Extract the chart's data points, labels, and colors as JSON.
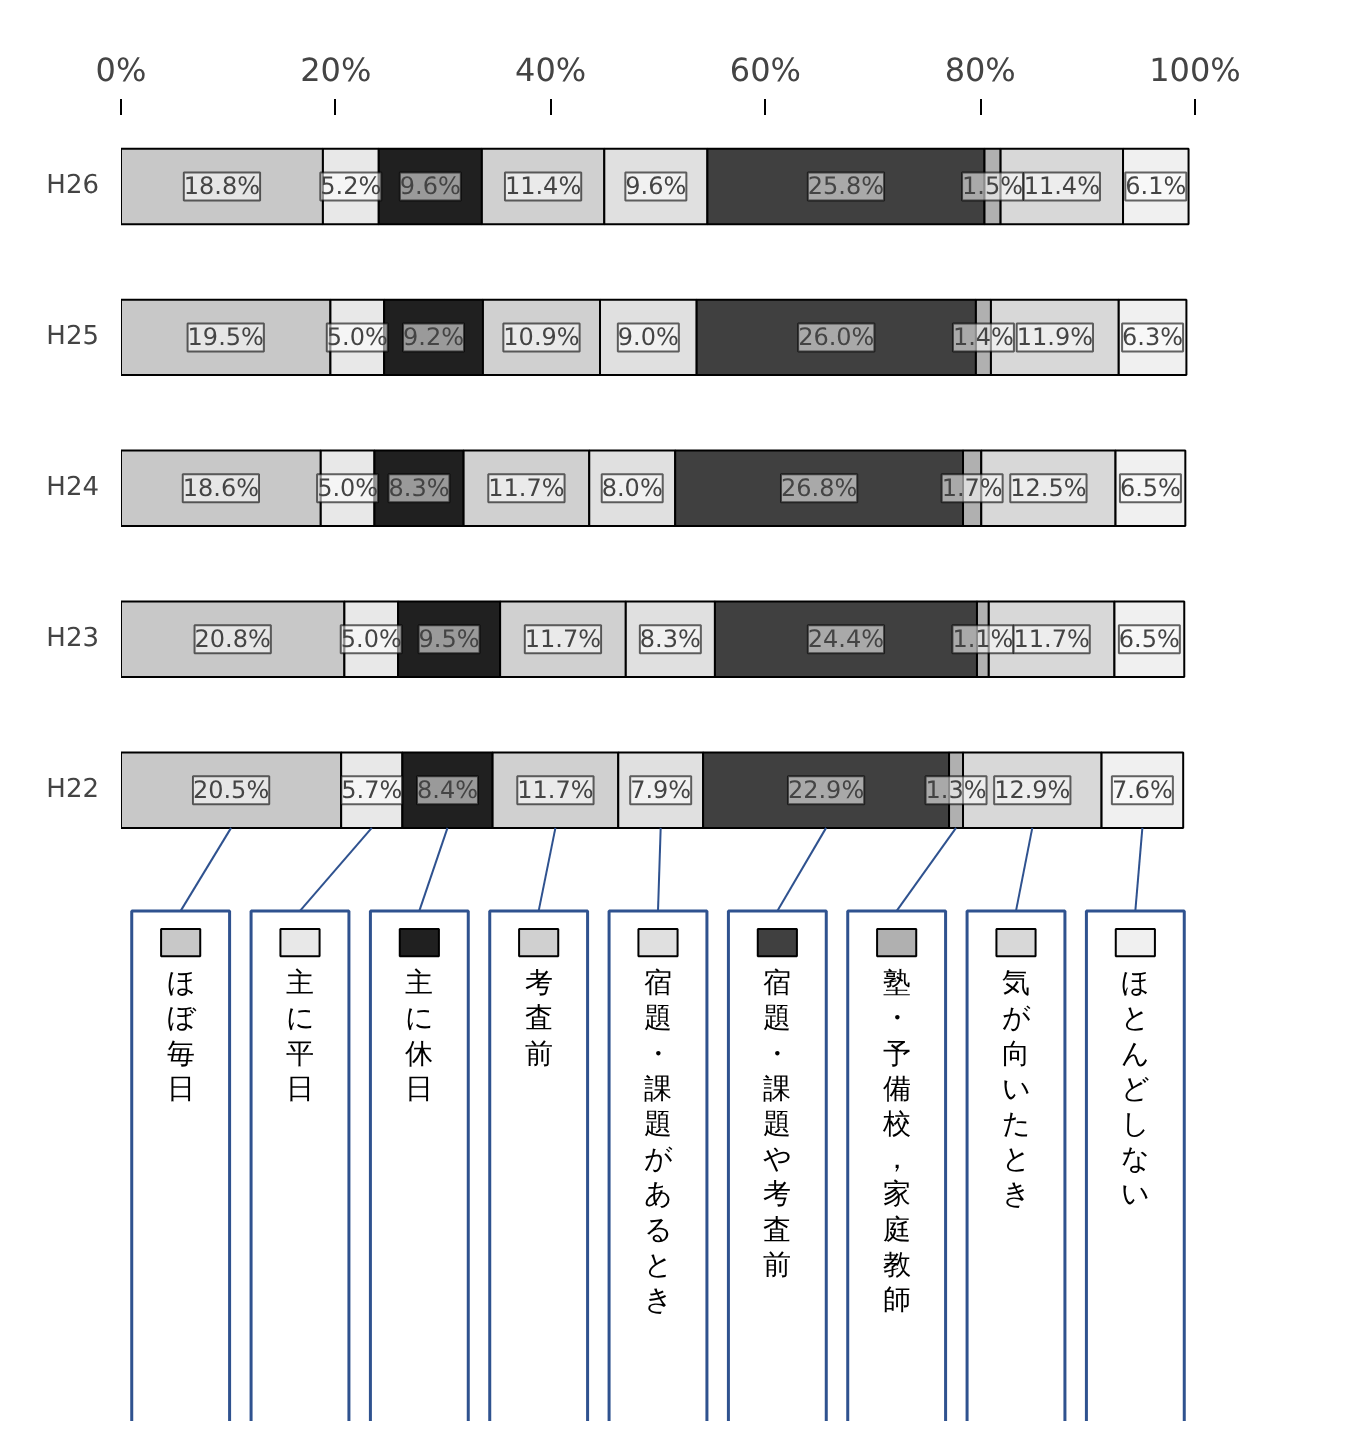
{
  "chart_data": {
    "type": "bar",
    "orientation": "horizontal",
    "stacked": true,
    "categories": [
      "H26",
      "H25",
      "H24",
      "H23",
      "H22"
    ],
    "xlim": [
      0,
      100
    ],
    "xticks": [
      {
        "value": 0,
        "label": "0%"
      },
      {
        "value": 20,
        "label": "20%"
      },
      {
        "value": 40,
        "label": "40%"
      },
      {
        "value": 60,
        "label": "60%"
      },
      {
        "value": 80,
        "label": "80%"
      },
      {
        "value": 100,
        "label": "100%"
      }
    ],
    "grid": false,
    "legend": "bottom",
    "series": [
      {
        "name": "ほぼ毎日",
        "color": "#c8c8c8",
        "values": [
          18.8,
          19.5,
          18.6,
          20.8,
          20.5
        ],
        "value_labels": [
          "18.8%",
          "19.5%",
          "18.6%",
          "20.8%",
          "20.5%"
        ]
      },
      {
        "name": "主に平日",
        "color": "#e8e8e8",
        "values": [
          5.2,
          5.0,
          5.0,
          5.0,
          5.7
        ],
        "value_labels": [
          "5.2%",
          "5.0%",
          "5.0%",
          "5.0%",
          "5.7%"
        ]
      },
      {
        "name": "主に休日",
        "color": "#202020",
        "values": [
          9.6,
          9.2,
          8.3,
          9.5,
          8.4
        ],
        "value_labels": [
          "9.6%",
          "9.2%",
          "8.3%",
          "9.5%",
          "8.4%"
        ]
      },
      {
        "name": "考査前",
        "color": "#d0d0d0",
        "values": [
          11.4,
          10.9,
          11.7,
          11.7,
          11.7
        ],
        "value_labels": [
          "11.4%",
          "10.9%",
          "11.7%",
          "11.7%",
          "11.7%"
        ]
      },
      {
        "name": "宿題・課題があるとき",
        "color": "#e0e0e0",
        "values": [
          9.6,
          9.0,
          8.0,
          8.3,
          7.9
        ],
        "value_labels": [
          "9.6%",
          "9.0%",
          "8.0%",
          "8.3%",
          "7.9%"
        ]
      },
      {
        "name": "宿題・課題や考査前",
        "color": "#404040",
        "values": [
          25.8,
          26.0,
          26.8,
          24.4,
          22.9
        ],
        "value_labels": [
          "25.8%",
          "26.0%",
          "26.8%",
          "24.4%",
          "22.9%"
        ]
      },
      {
        "name": "塾・予備校，家庭教師",
        "color": "#b0b0b0",
        "values": [
          1.5,
          1.4,
          1.7,
          1.1,
          1.3
        ],
        "value_labels": [
          "1.5%",
          "1.4%",
          "1.7%",
          "1.1%",
          "1.3%"
        ]
      },
      {
        "name": "気が向いたとき",
        "color": "#d8d8d8",
        "values": [
          11.4,
          11.9,
          12.5,
          11.7,
          12.9
        ],
        "value_labels": [
          "11.4%",
          "11.9%",
          "12.5%",
          "11.7%",
          "12.9%"
        ]
      },
      {
        "name": "ほとんどしない",
        "color": "#f0f0f0",
        "values": [
          6.1,
          6.3,
          6.5,
          6.5,
          7.6
        ],
        "value_labels": [
          "6.1%",
          "6.3%",
          "6.5%",
          "6.5%",
          "7.6%"
        ]
      }
    ]
  }
}
